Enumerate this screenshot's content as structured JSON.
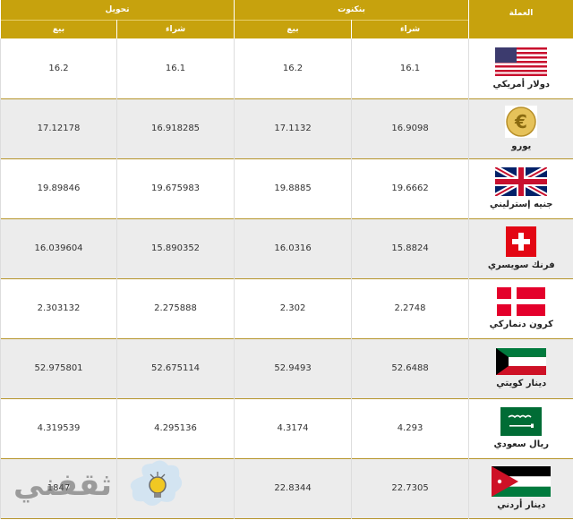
{
  "header": {
    "currency_label": "العملة",
    "banknote_label": "بنكنوت",
    "transfer_label": "تحويل",
    "buy_label": "شراء",
    "sell_label": "بيع"
  },
  "rows": [
    {
      "name": "دولار أمريكي",
      "icon": "us-flag-icon",
      "bank_buy": "16.1",
      "bank_sell": "16.2",
      "trans_buy": "16.1",
      "trans_sell": "16.2"
    },
    {
      "name": "يورو",
      "icon": "euro-coin-icon",
      "bank_buy": "16.9098",
      "bank_sell": "17.1132",
      "trans_buy": "16.918285",
      "trans_sell": "17.12178"
    },
    {
      "name": "جنيه إسترليني",
      "icon": "uk-flag-icon",
      "bank_buy": "19.6662",
      "bank_sell": "19.8885",
      "trans_buy": "19.675983",
      "trans_sell": "19.89846"
    },
    {
      "name": "فرنك سويسري",
      "icon": "swiss-flag-icon",
      "bank_buy": "15.8824",
      "bank_sell": "16.0316",
      "trans_buy": "15.890352",
      "trans_sell": "16.039604"
    },
    {
      "name": "كرون دنماركي",
      "icon": "danish-flag-icon",
      "bank_buy": "2.2748",
      "bank_sell": "2.302",
      "trans_buy": "2.275888",
      "trans_sell": "2.303132"
    },
    {
      "name": "دينار كويتي",
      "icon": "kuwait-flag-icon",
      "bank_buy": "52.6488",
      "bank_sell": "52.9493",
      "trans_buy": "52.675114",
      "trans_sell": "52.975801"
    },
    {
      "name": "ريال سعودي",
      "icon": "saudi-flag-icon",
      "bank_buy": "4.293",
      "bank_sell": "4.3174",
      "trans_buy": "4.295136",
      "trans_sell": "4.319539"
    },
    {
      "name": "دينار أردني",
      "icon": "jordan-flag-icon",
      "bank_buy": "22.7305",
      "bank_sell": "22.8344",
      "trans_buy": "",
      "trans_sell": "1847"
    }
  ],
  "watermark": {
    "text": "ثقفني",
    "icon": "lightbulb-icon"
  },
  "colors": {
    "header_bg": "#c7a20d",
    "row_alt": "#ececec",
    "row_border": "#b5942a"
  }
}
